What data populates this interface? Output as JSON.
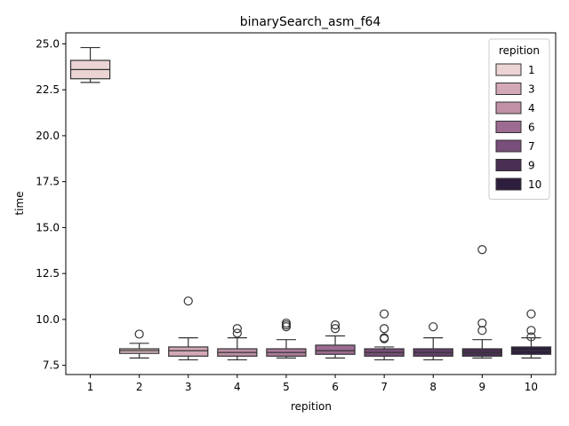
{
  "chart_data": {
    "type": "box",
    "title": "binarySearch_asm_f64",
    "xlabel": "repition",
    "ylabel": "time",
    "ylim": [
      7.0,
      25.6
    ],
    "yticks": [
      7.5,
      10.0,
      12.5,
      15.0,
      17.5,
      20.0,
      22.5,
      25.0
    ],
    "categories": [
      "1",
      "2",
      "3",
      "4",
      "5",
      "6",
      "7",
      "8",
      "9",
      "10"
    ],
    "legend": {
      "title": "repition",
      "placement": "top-right",
      "entries": [
        {
          "label": "1",
          "color": "#ecd4d4"
        },
        {
          "label": "3",
          "color": "#d3a9b7"
        },
        {
          "label": "4",
          "color": "#c091a6"
        },
        {
          "label": "6",
          "color": "#9d6b91"
        },
        {
          "label": "7",
          "color": "#7a4e7a"
        },
        {
          "label": "9",
          "color": "#4a2f53"
        },
        {
          "label": "10",
          "color": "#2d1e3e"
        }
      ]
    },
    "boxes": [
      {
        "category": "1",
        "whislo": 22.9,
        "q1": 23.1,
        "med": 23.6,
        "q3": 24.1,
        "whishi": 24.8,
        "fliers": [],
        "color": "#ecd4d4"
      },
      {
        "category": "2",
        "whislo": 7.9,
        "q1": 8.15,
        "med": 8.3,
        "q3": 8.4,
        "whishi": 8.7,
        "fliers": [
          9.2
        ],
        "color": "#e2c1c5"
      },
      {
        "category": "3",
        "whislo": 7.8,
        "q1": 8.0,
        "med": 8.3,
        "q3": 8.5,
        "whishi": 9.0,
        "fliers": [
          11.0
        ],
        "color": "#d3a9b7"
      },
      {
        "category": "4",
        "whislo": 7.8,
        "q1": 8.0,
        "med": 8.2,
        "q3": 8.4,
        "whishi": 9.0,
        "fliers": [
          9.25,
          9.5
        ],
        "color": "#c091a6"
      },
      {
        "category": "5",
        "whislo": 7.9,
        "q1": 8.0,
        "med": 8.2,
        "q3": 8.4,
        "whishi": 8.9,
        "fliers": [
          9.6,
          9.7,
          9.8
        ],
        "color": "#b07d9c"
      },
      {
        "category": "6",
        "whislo": 7.9,
        "q1": 8.1,
        "med": 8.3,
        "q3": 8.6,
        "whishi": 9.1,
        "fliers": [
          9.5,
          9.7
        ],
        "color": "#9d6b91"
      },
      {
        "category": "7",
        "whislo": 7.8,
        "q1": 8.0,
        "med": 8.2,
        "q3": 8.4,
        "whishi": 8.5,
        "fliers": [
          8.95,
          9.0,
          9.5,
          10.3
        ],
        "color": "#7a4e7a"
      },
      {
        "category": "8",
        "whislo": 7.8,
        "q1": 8.0,
        "med": 8.2,
        "q3": 8.4,
        "whishi": 9.0,
        "fliers": [
          9.6
        ],
        "color": "#62406a"
      },
      {
        "category": "9",
        "whislo": 7.9,
        "q1": 8.0,
        "med": 8.2,
        "q3": 8.4,
        "whishi": 8.9,
        "fliers": [
          9.4,
          9.8,
          13.8
        ],
        "color": "#4a2f53"
      },
      {
        "category": "10",
        "whislo": 7.9,
        "q1": 8.1,
        "med": 8.3,
        "q3": 8.5,
        "whishi": 9.0,
        "fliers": [
          9.05,
          9.4,
          10.3
        ],
        "color": "#2d1e3e"
      }
    ]
  }
}
